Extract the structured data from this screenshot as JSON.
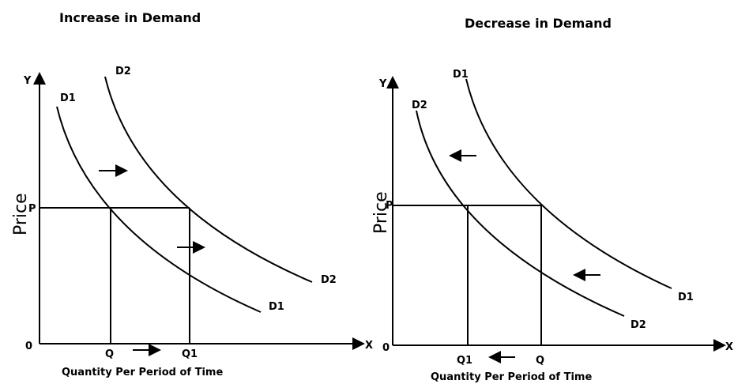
{
  "panels": [
    {
      "title": "Increase in Demand",
      "y_axis": "Y",
      "x_axis": "X",
      "origin": "0",
      "y_label": "Price",
      "price_label": "P",
      "quantity_labels": [
        "Q",
        "Q1"
      ],
      "curves": [
        {
          "start": "D1",
          "end": "D1"
        },
        {
          "start": "D2",
          "end": "D2"
        }
      ],
      "x_caption": "Quantity Per Period of Time"
    },
    {
      "title": "Decrease in Demand",
      "y_axis": "Y",
      "x_axis": "X",
      "origin": "0",
      "y_label": "Price",
      "price_label": "P",
      "quantity_labels": [
        "Q1",
        "Q"
      ],
      "curves": [
        {
          "start": "D1",
          "end": "D1"
        },
        {
          "start": "D2",
          "end": "D2"
        }
      ],
      "x_caption": "Quantity Per Period of Time"
    }
  ]
}
